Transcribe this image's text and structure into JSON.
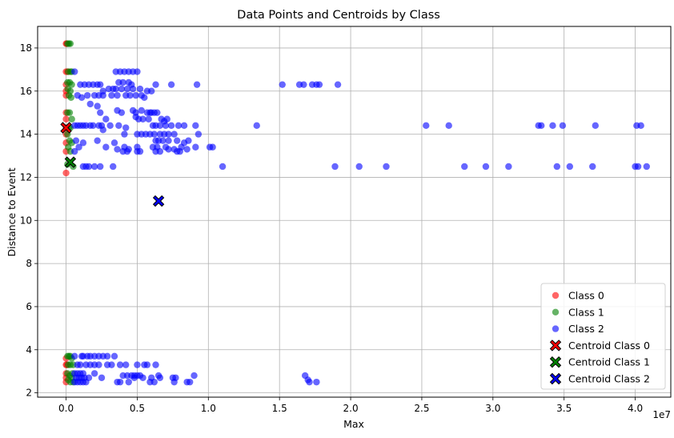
{
  "chart_data": {
    "type": "scatter",
    "title": "Data Points and Centroids by Class",
    "xlabel": "Max",
    "ylabel": "Distance to Event",
    "x_scale_label": "1e7",
    "xlim": [
      -2000000,
      42500000
    ],
    "ylim": [
      1.8,
      19.0
    ],
    "x_ticks": [
      0,
      5000000,
      10000000,
      15000000,
      20000000,
      25000000,
      30000000,
      35000000,
      40000000
    ],
    "x_tick_labels": [
      "0.0",
      "0.5",
      "1.0",
      "1.5",
      "2.0",
      "2.5",
      "3.0",
      "3.5",
      "4.0"
    ],
    "y_ticks": [
      2,
      4,
      6,
      8,
      10,
      12,
      14,
      16,
      18
    ],
    "y_tick_labels": [
      "2",
      "4",
      "6",
      "8",
      "10",
      "12",
      "14",
      "16",
      "18"
    ],
    "grid": true,
    "legend_position": "lower-right",
    "series": [
      {
        "name": "Class 0",
        "color": "#ff0000",
        "points": [
          [
            0,
            12.2
          ],
          [
            0,
            13.2
          ],
          [
            0,
            13.6
          ],
          [
            0,
            14.0
          ],
          [
            0,
            14.3
          ],
          [
            0,
            14.7
          ],
          [
            0,
            15.0
          ],
          [
            0,
            15.8
          ],
          [
            0,
            16.0
          ],
          [
            0,
            16.3
          ],
          [
            0,
            16.9
          ],
          [
            0,
            18.2
          ],
          [
            50000,
            18.2
          ],
          [
            100000,
            16.9
          ],
          [
            0,
            2.5
          ],
          [
            0,
            2.7
          ],
          [
            0,
            2.9
          ],
          [
            0,
            3.3
          ],
          [
            0,
            3.6
          ],
          [
            60000,
            3.3
          ]
        ]
      },
      {
        "name": "Class 1",
        "color": "#008000",
        "points": [
          [
            100000,
            18.2
          ],
          [
            200000,
            18.2
          ],
          [
            300000,
            18.2
          ],
          [
            150000,
            16.9
          ],
          [
            300000,
            16.9
          ],
          [
            400000,
            16.9
          ],
          [
            100000,
            16.4
          ],
          [
            250000,
            16.4
          ],
          [
            400000,
            16.3
          ],
          [
            120000,
            16.1
          ],
          [
            300000,
            16.0
          ],
          [
            200000,
            15.8
          ],
          [
            350000,
            15.7
          ],
          [
            100000,
            15.0
          ],
          [
            250000,
            15.0
          ],
          [
            400000,
            14.7
          ],
          [
            200000,
            14.3
          ],
          [
            300000,
            14.3
          ],
          [
            100000,
            14.0
          ],
          [
            250000,
            13.7
          ],
          [
            400000,
            13.6
          ],
          [
            150000,
            13.4
          ],
          [
            300000,
            13.2
          ],
          [
            500000,
            12.5
          ],
          [
            100000,
            12.6
          ],
          [
            100000,
            3.7
          ],
          [
            200000,
            3.7
          ],
          [
            300000,
            3.7
          ],
          [
            400000,
            3.6
          ],
          [
            150000,
            3.3
          ],
          [
            300000,
            3.3
          ],
          [
            500000,
            3.3
          ],
          [
            100000,
            2.9
          ],
          [
            250000,
            2.8
          ],
          [
            400000,
            2.7
          ],
          [
            150000,
            2.6
          ],
          [
            300000,
            2.5
          ],
          [
            500000,
            2.5
          ],
          [
            450000,
            2.9
          ]
        ]
      },
      {
        "name": "Class 2",
        "color": "#0000ff",
        "points": [
          [
            9200000,
            16.3
          ],
          [
            15200000,
            16.3
          ],
          [
            16400000,
            16.3
          ],
          [
            16700000,
            16.3
          ],
          [
            17300000,
            16.3
          ],
          [
            17600000,
            16.3
          ],
          [
            17800000,
            16.3
          ],
          [
            19100000,
            16.3
          ],
          [
            13400000,
            14.4
          ],
          [
            25300000,
            14.4
          ],
          [
            26900000,
            14.4
          ],
          [
            33200000,
            14.4
          ],
          [
            33400000,
            14.4
          ],
          [
            34200000,
            14.4
          ],
          [
            34900000,
            14.4
          ],
          [
            37200000,
            14.4
          ],
          [
            40100000,
            14.4
          ],
          [
            40400000,
            14.4
          ],
          [
            11000000,
            12.5
          ],
          [
            18900000,
            12.5
          ],
          [
            20600000,
            12.5
          ],
          [
            22500000,
            12.5
          ],
          [
            28000000,
            12.5
          ],
          [
            29500000,
            12.5
          ],
          [
            31100000,
            12.5
          ],
          [
            34500000,
            12.5
          ],
          [
            35400000,
            12.5
          ],
          [
            37000000,
            12.5
          ],
          [
            40000000,
            12.5
          ],
          [
            40200000,
            12.5
          ],
          [
            40800000,
            12.5
          ],
          [
            3800000,
            16.9
          ],
          [
            4100000,
            16.9
          ],
          [
            4400000,
            16.9
          ],
          [
            4700000,
            16.9
          ],
          [
            5000000,
            16.9
          ],
          [
            3500000,
            16.9
          ],
          [
            600000,
            16.9
          ],
          [
            3700000,
            16.4
          ],
          [
            4000000,
            16.4
          ],
          [
            4400000,
            16.4
          ],
          [
            4600000,
            16.3
          ],
          [
            6300000,
            16.3
          ],
          [
            7400000,
            16.3
          ],
          [
            1000000,
            16.3
          ],
          [
            1300000,
            16.3
          ],
          [
            1600000,
            16.3
          ],
          [
            1900000,
            16.3
          ],
          [
            2200000,
            16.3
          ],
          [
            2400000,
            16.3
          ],
          [
            3000000,
            16.1
          ],
          [
            3300000,
            16.1
          ],
          [
            3500000,
            16.1
          ],
          [
            3900000,
            16.1
          ],
          [
            4300000,
            16.1
          ],
          [
            4700000,
            16.1
          ],
          [
            5200000,
            16.1
          ],
          [
            5700000,
            16.0
          ],
          [
            6000000,
            16.0
          ],
          [
            2600000,
            16.0
          ],
          [
            1500000,
            15.8
          ],
          [
            2000000,
            15.8
          ],
          [
            2300000,
            15.8
          ],
          [
            2600000,
            15.8
          ],
          [
            3200000,
            15.8
          ],
          [
            3600000,
            15.8
          ],
          [
            4200000,
            15.8
          ],
          [
            4500000,
            15.8
          ],
          [
            4900000,
            15.8
          ],
          [
            5300000,
            15.8
          ],
          [
            5500000,
            15.7
          ],
          [
            800000,
            15.8
          ],
          [
            1100000,
            15.7
          ],
          [
            1700000,
            15.4
          ],
          [
            2200000,
            15.3
          ],
          [
            3600000,
            15.1
          ],
          [
            3900000,
            15.0
          ],
          [
            4700000,
            15.1
          ],
          [
            4900000,
            15.0
          ],
          [
            5300000,
            15.1
          ],
          [
            5700000,
            15.0
          ],
          [
            5900000,
            15.0
          ],
          [
            6000000,
            15.0
          ],
          [
            6200000,
            15.0
          ],
          [
            6400000,
            15.0
          ],
          [
            2400000,
            15.0
          ],
          [
            2800000,
            14.7
          ],
          [
            4900000,
            14.8
          ],
          [
            5100000,
            14.7
          ],
          [
            5400000,
            14.7
          ],
          [
            5800000,
            14.7
          ],
          [
            6700000,
            14.7
          ],
          [
            6900000,
            14.6
          ],
          [
            7100000,
            14.7
          ],
          [
            600000,
            14.4
          ],
          [
            800000,
            14.4
          ],
          [
            1000000,
            14.4
          ],
          [
            1200000,
            14.4
          ],
          [
            1400000,
            14.4
          ],
          [
            1700000,
            14.4
          ],
          [
            1900000,
            14.4
          ],
          [
            2300000,
            14.4
          ],
          [
            2500000,
            14.4
          ],
          [
            3100000,
            14.4
          ],
          [
            3700000,
            14.4
          ],
          [
            4200000,
            14.3
          ],
          [
            6100000,
            14.4
          ],
          [
            6300000,
            14.4
          ],
          [
            6600000,
            14.4
          ],
          [
            7000000,
            14.4
          ],
          [
            7400000,
            14.4
          ],
          [
            7900000,
            14.4
          ],
          [
            8300000,
            14.4
          ],
          [
            9100000,
            14.4
          ],
          [
            2600000,
            14.2
          ],
          [
            4100000,
            14.0
          ],
          [
            5000000,
            14.0
          ],
          [
            5300000,
            14.0
          ],
          [
            5600000,
            14.0
          ],
          [
            5900000,
            14.0
          ],
          [
            6200000,
            14.0
          ],
          [
            6600000,
            14.0
          ],
          [
            6900000,
            14.0
          ],
          [
            7200000,
            14.0
          ],
          [
            7600000,
            14.0
          ],
          [
            9300000,
            14.0
          ],
          [
            700000,
            13.7
          ],
          [
            1200000,
            13.6
          ],
          [
            2200000,
            13.7
          ],
          [
            3400000,
            13.6
          ],
          [
            6300000,
            13.7
          ],
          [
            6500000,
            13.7
          ],
          [
            6800000,
            13.7
          ],
          [
            7200000,
            13.7
          ],
          [
            7800000,
            13.7
          ],
          [
            8300000,
            13.6
          ],
          [
            8600000,
            13.7
          ],
          [
            900000,
            13.4
          ],
          [
            2800000,
            13.4
          ],
          [
            3600000,
            13.3
          ],
          [
            4100000,
            13.4
          ],
          [
            4400000,
            13.3
          ],
          [
            5000000,
            13.4
          ],
          [
            6100000,
            13.4
          ],
          [
            6400000,
            13.4
          ],
          [
            7000000,
            13.4
          ],
          [
            7200000,
            13.3
          ],
          [
            7600000,
            13.3
          ],
          [
            8100000,
            13.4
          ],
          [
            8500000,
            13.3
          ],
          [
            9100000,
            13.4
          ],
          [
            10100000,
            13.4
          ],
          [
            10300000,
            13.4
          ],
          [
            600000,
            13.2
          ],
          [
            4000000,
            13.2
          ],
          [
            4300000,
            13.2
          ],
          [
            5000000,
            13.2
          ],
          [
            5200000,
            13.2
          ],
          [
            6300000,
            13.2
          ],
          [
            6600000,
            13.2
          ],
          [
            7800000,
            13.2
          ],
          [
            8000000,
            13.2
          ],
          [
            1200000,
            12.5
          ],
          [
            1400000,
            12.5
          ],
          [
            1600000,
            12.5
          ],
          [
            2000000,
            12.5
          ],
          [
            2400000,
            12.5
          ],
          [
            3300000,
            12.5
          ],
          [
            600000,
            3.7
          ],
          [
            1100000,
            3.7
          ],
          [
            1200000,
            3.7
          ],
          [
            1500000,
            3.7
          ],
          [
            1700000,
            3.7
          ],
          [
            2000000,
            3.7
          ],
          [
            2300000,
            3.7
          ],
          [
            2600000,
            3.7
          ],
          [
            2900000,
            3.7
          ],
          [
            3400000,
            3.7
          ],
          [
            800000,
            3.3
          ],
          [
            1000000,
            3.3
          ],
          [
            1400000,
            3.3
          ],
          [
            1700000,
            3.3
          ],
          [
            2000000,
            3.3
          ],
          [
            2300000,
            3.3
          ],
          [
            2900000,
            3.3
          ],
          [
            3200000,
            3.3
          ],
          [
            3800000,
            3.3
          ],
          [
            4200000,
            3.3
          ],
          [
            5000000,
            3.3
          ],
          [
            5500000,
            3.3
          ],
          [
            5700000,
            3.3
          ],
          [
            6300000,
            3.3
          ],
          [
            600000,
            2.9
          ],
          [
            800000,
            2.9
          ],
          [
            1000000,
            2.9
          ],
          [
            1200000,
            2.9
          ],
          [
            2000000,
            2.9
          ],
          [
            4000000,
            2.8
          ],
          [
            4300000,
            2.8
          ],
          [
            4600000,
            2.8
          ],
          [
            4800000,
            2.8
          ],
          [
            5000000,
            2.8
          ],
          [
            5200000,
            2.8
          ],
          [
            6500000,
            2.8
          ],
          [
            9000000,
            2.8
          ],
          [
            16800000,
            2.8
          ],
          [
            700000,
            2.7
          ],
          [
            900000,
            2.7
          ],
          [
            1100000,
            2.7
          ],
          [
            1300000,
            2.7
          ],
          [
            1600000,
            2.7
          ],
          [
            2500000,
            2.7
          ],
          [
            4800000,
            2.7
          ],
          [
            5400000,
            2.7
          ],
          [
            6000000,
            2.7
          ],
          [
            6600000,
            2.7
          ],
          [
            7500000,
            2.7
          ],
          [
            7700000,
            2.7
          ],
          [
            17000000,
            2.6
          ],
          [
            600000,
            2.5
          ],
          [
            800000,
            2.5
          ],
          [
            1000000,
            2.5
          ],
          [
            1200000,
            2.5
          ],
          [
            1400000,
            2.5
          ],
          [
            3600000,
            2.5
          ],
          [
            3800000,
            2.5
          ],
          [
            4400000,
            2.5
          ],
          [
            5900000,
            2.5
          ],
          [
            6200000,
            2.5
          ],
          [
            7600000,
            2.5
          ],
          [
            8500000,
            2.5
          ],
          [
            8700000,
            2.5
          ],
          [
            17100000,
            2.5
          ],
          [
            17600000,
            2.5
          ]
        ]
      }
    ],
    "centroids": [
      {
        "name": "Centroid Class 0",
        "color": "#ff0000",
        "x": 0,
        "y": 14.3
      },
      {
        "name": "Centroid Class 1",
        "color": "#008000",
        "x": 300000,
        "y": 12.7
      },
      {
        "name": "Centroid Class 2",
        "color": "#0000ff",
        "x": 6500000,
        "y": 10.9
      }
    ]
  }
}
